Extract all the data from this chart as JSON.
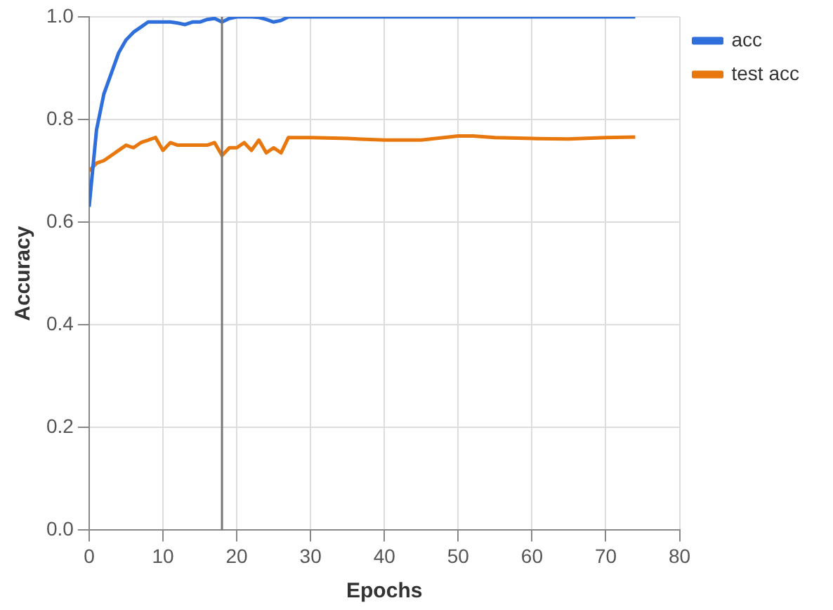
{
  "chart_data": {
    "type": "line",
    "xlabel": "Epochs",
    "ylabel": "Accuracy",
    "xlim": [
      0,
      80
    ],
    "xticks": [
      0,
      10,
      20,
      30,
      40,
      50,
      60,
      70,
      80
    ],
    "ylim": [
      0,
      1
    ],
    "yticks": [
      {
        "value": 0,
        "label": "0.0"
      },
      0.2,
      0.4,
      0.6,
      0.8,
      {
        "value": 1,
        "label": "1.0"
      }
    ],
    "grid": true,
    "legend": "top right",
    "marker": "none",
    "line_style": "solid",
    "ref_lines": [
      {
        "axis": "x",
        "value": 18,
        "color": "#777777"
      }
    ],
    "series": [
      {
        "name": "acc",
        "color": "#2f6fdc",
        "x": [
          0,
          1,
          2,
          3,
          4,
          5,
          6,
          7,
          8,
          9,
          10,
          11,
          12,
          13,
          14,
          15,
          16,
          17,
          18,
          19,
          20,
          21,
          22,
          23,
          24,
          25,
          26,
          27,
          30,
          40,
          50,
          60,
          70,
          74
        ],
        "values": [
          0.63,
          0.78,
          0.85,
          0.89,
          0.93,
          0.955,
          0.97,
          0.98,
          0.99,
          0.99,
          0.99,
          0.99,
          0.988,
          0.985,
          0.99,
          0.99,
          0.995,
          0.997,
          0.99,
          0.997,
          1.0,
          1.0,
          1.0,
          0.999,
          0.995,
          0.99,
          0.993,
          1.0,
          1.0,
          1.0,
          1.0,
          1.0,
          1.0,
          1.0
        ]
      },
      {
        "name": "test acc",
        "color": "#e8780e",
        "x": [
          0,
          1,
          2,
          3,
          4,
          5,
          6,
          7,
          8,
          9,
          10,
          11,
          12,
          13,
          14,
          15,
          16,
          17,
          18,
          19,
          20,
          21,
          22,
          23,
          24,
          25,
          26,
          27,
          28,
          30,
          35,
          40,
          45,
          50,
          52,
          55,
          60,
          65,
          70,
          74
        ],
        "values": [
          0.7,
          0.715,
          0.72,
          0.73,
          0.74,
          0.75,
          0.745,
          0.755,
          0.76,
          0.765,
          0.74,
          0.755,
          0.75,
          0.75,
          0.75,
          0.75,
          0.75,
          0.755,
          0.73,
          0.745,
          0.745,
          0.755,
          0.74,
          0.76,
          0.735,
          0.745,
          0.735,
          0.765,
          0.765,
          0.765,
          0.763,
          0.76,
          0.76,
          0.768,
          0.768,
          0.765,
          0.763,
          0.762,
          0.765,
          0.766
        ]
      }
    ]
  }
}
